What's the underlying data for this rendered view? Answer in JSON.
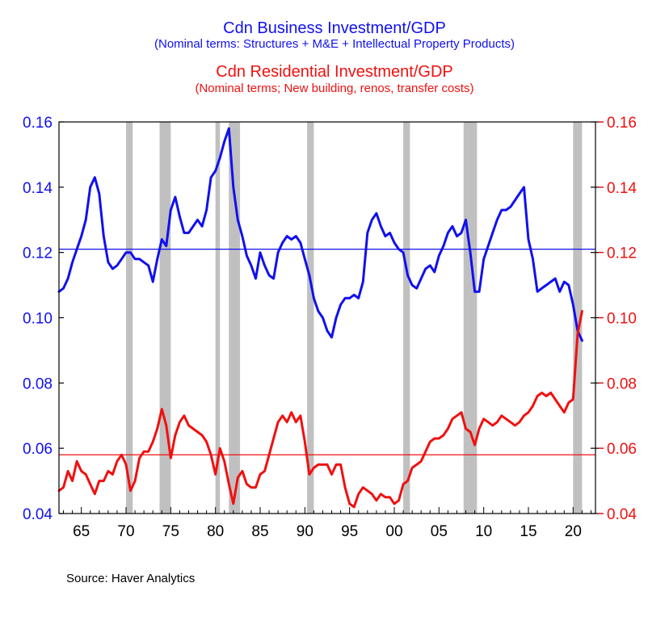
{
  "titles": {
    "business_title": "Cdn Business Investment/GDP",
    "business_subtitle": "(Nominal terms: Structures + M&E + Intellectual Property Products)",
    "residential_title": "Cdn Residential Investment/GDP",
    "residential_subtitle": "(Nominal terms; New building, renos, transfer costs)"
  },
  "source": "Source:  Haver Analytics",
  "colors": {
    "business": "#1010f0",
    "residential": "#f01010",
    "recession": "#c0c0c0",
    "axis": "#000000"
  },
  "chart_data": {
    "type": "line",
    "xlim": [
      1962.5,
      2022.5
    ],
    "ylim": [
      0.04,
      0.16
    ],
    "x_ticks": [
      1965,
      1970,
      1975,
      1980,
      1985,
      1990,
      1995,
      2000,
      2005,
      2010,
      2015,
      2020
    ],
    "x_tick_labels": [
      "65",
      "70",
      "75",
      "80",
      "85",
      "90",
      "95",
      "00",
      "05",
      "10",
      "15",
      "20"
    ],
    "y_ticks": [
      0.04,
      0.06,
      0.08,
      0.1,
      0.12,
      0.14,
      0.16
    ],
    "y_tick_labels": [
      "0.04",
      "0.06",
      "0.08",
      "0.10",
      "0.12",
      "0.14",
      "0.16"
    ],
    "left_axis_color": "business",
    "right_axis_color": "residential",
    "recessions": [
      [
        1970.0,
        1970.75
      ],
      [
        1973.75,
        1975.0
      ],
      [
        1980.0,
        1980.5
      ],
      [
        1981.5,
        1982.75
      ],
      [
        1990.25,
        1991.0
      ],
      [
        2001.0,
        2001.75
      ],
      [
        2007.75,
        2009.25
      ],
      [
        2020.0,
        2021.0
      ]
    ],
    "reference_lines": [
      {
        "series": "business",
        "y": 0.121
      },
      {
        "series": "residential",
        "y": 0.058
      }
    ],
    "series": [
      {
        "key": "business",
        "x": [
          1962.5,
          1963.0,
          1963.5,
          1964.0,
          1964.5,
          1965.0,
          1965.5,
          1966.0,
          1966.5,
          1967.0,
          1967.5,
          1968.0,
          1968.5,
          1969.0,
          1969.5,
          1970.0,
          1970.5,
          1971.0,
          1971.5,
          1972.0,
          1972.5,
          1973.0,
          1973.5,
          1974.0,
          1974.5,
          1975.0,
          1975.5,
          1976.0,
          1976.5,
          1977.0,
          1977.5,
          1978.0,
          1978.5,
          1979.0,
          1979.5,
          1980.0,
          1980.5,
          1981.0,
          1981.5,
          1982.0,
          1982.5,
          1983.0,
          1983.5,
          1984.0,
          1984.5,
          1985.0,
          1985.5,
          1986.0,
          1986.5,
          1987.0,
          1987.5,
          1988.0,
          1988.5,
          1989.0,
          1989.5,
          1990.0,
          1990.5,
          1991.0,
          1991.5,
          1992.0,
          1992.5,
          1993.0,
          1993.5,
          1994.0,
          1994.5,
          1995.0,
          1995.5,
          1996.0,
          1996.5,
          1997.0,
          1997.5,
          1998.0,
          1998.5,
          1999.0,
          1999.5,
          2000.0,
          2000.5,
          2001.0,
          2001.5,
          2002.0,
          2002.5,
          2003.0,
          2003.5,
          2004.0,
          2004.5,
          2005.0,
          2005.5,
          2006.0,
          2006.5,
          2007.0,
          2007.5,
          2008.0,
          2008.5,
          2009.0,
          2009.5,
          2010.0,
          2010.5,
          2011.0,
          2011.5,
          2012.0,
          2012.5,
          2013.0,
          2013.5,
          2014.0,
          2014.5,
          2015.0,
          2015.5,
          2016.0,
          2016.5,
          2017.0,
          2017.5,
          2018.0,
          2018.5,
          2019.0,
          2019.5,
          2020.0,
          2020.5,
          2021.0
        ],
        "values": [
          0.108,
          0.109,
          0.112,
          0.117,
          0.121,
          0.125,
          0.13,
          0.14,
          0.143,
          0.138,
          0.125,
          0.117,
          0.115,
          0.116,
          0.118,
          0.12,
          0.12,
          0.118,
          0.118,
          0.117,
          0.116,
          0.111,
          0.118,
          0.124,
          0.122,
          0.133,
          0.137,
          0.131,
          0.126,
          0.126,
          0.128,
          0.13,
          0.128,
          0.133,
          0.143,
          0.145,
          0.149,
          0.154,
          0.158,
          0.14,
          0.13,
          0.125,
          0.119,
          0.116,
          0.112,
          0.12,
          0.116,
          0.113,
          0.112,
          0.12,
          0.123,
          0.125,
          0.124,
          0.125,
          0.123,
          0.118,
          0.113,
          0.106,
          0.102,
          0.1,
          0.096,
          0.094,
          0.1,
          0.104,
          0.106,
          0.106,
          0.107,
          0.106,
          0.111,
          0.126,
          0.13,
          0.132,
          0.128,
          0.125,
          0.126,
          0.123,
          0.121,
          0.12,
          0.113,
          0.11,
          0.109,
          0.112,
          0.115,
          0.116,
          0.114,
          0.119,
          0.122,
          0.126,
          0.128,
          0.125,
          0.126,
          0.13,
          0.12,
          0.108,
          0.108,
          0.118,
          0.122,
          0.126,
          0.13,
          0.133,
          0.133,
          0.134,
          0.136,
          0.138,
          0.14,
          0.124,
          0.118,
          0.108,
          0.109,
          0.11,
          0.111,
          0.112,
          0.108,
          0.111,
          0.11,
          0.104,
          0.096,
          0.093
        ]
      },
      {
        "key": "residential",
        "x": [
          1962.5,
          1963.0,
          1963.5,
          1964.0,
          1964.5,
          1965.0,
          1965.5,
          1966.0,
          1966.5,
          1967.0,
          1967.5,
          1968.0,
          1968.5,
          1969.0,
          1969.5,
          1970.0,
          1970.5,
          1971.0,
          1971.5,
          1972.0,
          1972.5,
          1973.0,
          1973.5,
          1974.0,
          1974.5,
          1975.0,
          1975.5,
          1976.0,
          1976.5,
          1977.0,
          1977.5,
          1978.0,
          1978.5,
          1979.0,
          1979.5,
          1980.0,
          1980.5,
          1981.0,
          1981.5,
          1982.0,
          1982.5,
          1983.0,
          1983.5,
          1984.0,
          1984.5,
          1985.0,
          1985.5,
          1986.0,
          1986.5,
          1987.0,
          1987.5,
          1988.0,
          1988.5,
          1989.0,
          1989.5,
          1990.0,
          1990.5,
          1991.0,
          1991.5,
          1992.0,
          1992.5,
          1993.0,
          1993.5,
          1994.0,
          1994.5,
          1995.0,
          1995.5,
          1996.0,
          1996.5,
          1997.0,
          1997.5,
          1998.0,
          1998.5,
          1999.0,
          1999.5,
          2000.0,
          2000.5,
          2001.0,
          2001.5,
          2002.0,
          2002.5,
          2003.0,
          2003.5,
          2004.0,
          2004.5,
          2005.0,
          2005.5,
          2006.0,
          2006.5,
          2007.0,
          2007.5,
          2008.0,
          2008.5,
          2009.0,
          2009.5,
          2010.0,
          2010.5,
          2011.0,
          2011.5,
          2012.0,
          2012.5,
          2013.0,
          2013.5,
          2014.0,
          2014.5,
          2015.0,
          2015.5,
          2016.0,
          2016.5,
          2017.0,
          2017.5,
          2018.0,
          2018.5,
          2019.0,
          2019.5,
          2020.0,
          2020.25,
          2020.5,
          2021.0
        ],
        "values": [
          0.047,
          0.048,
          0.053,
          0.05,
          0.056,
          0.053,
          0.052,
          0.049,
          0.046,
          0.05,
          0.05,
          0.053,
          0.052,
          0.056,
          0.058,
          0.055,
          0.047,
          0.05,
          0.057,
          0.059,
          0.059,
          0.062,
          0.066,
          0.072,
          0.067,
          0.057,
          0.064,
          0.068,
          0.07,
          0.067,
          0.066,
          0.065,
          0.064,
          0.062,
          0.058,
          0.052,
          0.06,
          0.056,
          0.049,
          0.043,
          0.051,
          0.053,
          0.049,
          0.048,
          0.048,
          0.052,
          0.053,
          0.058,
          0.063,
          0.068,
          0.07,
          0.068,
          0.071,
          0.068,
          0.07,
          0.062,
          0.052,
          0.054,
          0.055,
          0.055,
          0.055,
          0.052,
          0.055,
          0.055,
          0.048,
          0.043,
          0.042,
          0.046,
          0.048,
          0.047,
          0.046,
          0.044,
          0.046,
          0.045,
          0.045,
          0.043,
          0.044,
          0.049,
          0.05,
          0.054,
          0.055,
          0.056,
          0.059,
          0.062,
          0.063,
          0.063,
          0.064,
          0.066,
          0.069,
          0.07,
          0.071,
          0.066,
          0.065,
          0.061,
          0.066,
          0.069,
          0.068,
          0.067,
          0.068,
          0.07,
          0.069,
          0.068,
          0.067,
          0.068,
          0.07,
          0.071,
          0.073,
          0.076,
          0.077,
          0.076,
          0.077,
          0.075,
          0.073,
          0.071,
          0.074,
          0.075,
          0.085,
          0.095,
          0.102
        ]
      }
    ]
  }
}
